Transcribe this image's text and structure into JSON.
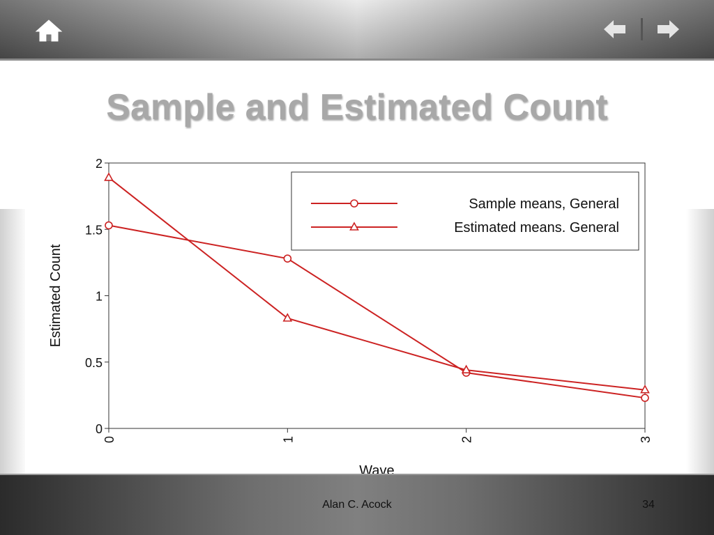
{
  "slide": {
    "title": "Sample and Estimated Count",
    "footer_author": "Alan C. Acock",
    "page_number": "34"
  },
  "nav": {
    "home_icon": "home-icon",
    "back_icon": "arrow-left-icon",
    "forward_icon": "arrow-right-icon"
  },
  "colors": {
    "series": "#cc2222",
    "title": "#a8a8a8"
  },
  "chart_data": {
    "type": "line",
    "title": "",
    "xlabel": "Wave",
    "ylabel": "Estimated Count",
    "x": [
      0,
      1,
      2,
      3
    ],
    "x_ticks": [
      "0",
      "1",
      "2",
      "3"
    ],
    "y_ticks": [
      "0",
      "0.5",
      "1",
      "1.5",
      "2"
    ],
    "xlim": [
      0,
      3
    ],
    "ylim": [
      0,
      2
    ],
    "grid": false,
    "legend_position": "top-right",
    "series": [
      {
        "name": "Sample means, General",
        "marker": "circle",
        "values": [
          1.53,
          1.28,
          0.42,
          0.23
        ]
      },
      {
        "name": "Estimated means. General",
        "marker": "triangle",
        "values": [
          1.89,
          0.83,
          0.44,
          0.29
        ]
      }
    ]
  }
}
